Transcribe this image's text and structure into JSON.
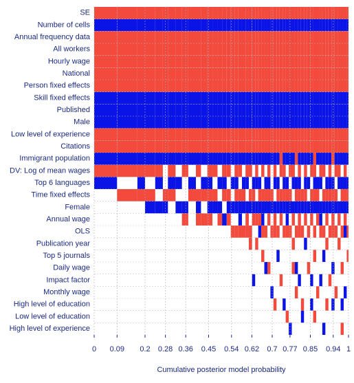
{
  "chart_data": {
    "type": "inclusion",
    "xlabel": "Cumulative posterior model probability",
    "xlim": [
      0,
      1
    ],
    "xticks": [
      0,
      0.09,
      0.2,
      0.28,
      0.36,
      0.45,
      0.54,
      0.62,
      0.7,
      0.77,
      0.85,
      0.94,
      1
    ],
    "grid": true,
    "colors": {
      "+": "#f24a3c",
      "-": "#0a14e6"
    },
    "variables": [
      "SE",
      "Number of cells",
      "Annual frequency data",
      "All workers",
      "Hourly wage",
      "National",
      "Person fixed effects",
      "Skill fixed effects",
      "Published",
      "Male",
      "Low level of experience",
      "Citations",
      "Immigrant population",
      "DV: Log of mean wages",
      "Top 6 languages",
      "Time fixed effects",
      "Female",
      "Annual wage",
      "OLS",
      "Publication year",
      "Top 5 journals",
      "Daily wage",
      "Impact factor",
      "Monthly wage",
      "High level of education",
      "Low level of education",
      "High level of experience"
    ],
    "models": [
      {
        "prob": 0.09,
        "signs": "+-+++++---++-+-000000000000"
      },
      {
        "prob": 0.08,
        "signs": "+-+++++---++-+0+00000000000"
      },
      {
        "prob": 0.03,
        "signs": "+-+++++---++-+-+00000000000"
      },
      {
        "prob": 0.04,
        "signs": "+-+++++---++-+0+-0000000000"
      },
      {
        "prob": 0.03,
        "signs": "+-+++++---++-+-0-0000000000"
      },
      {
        "prob": 0.02,
        "signs": "+-+++++---++-00+-0000000000"
      },
      {
        "prob": 0.03,
        "signs": "+-+++++---++-+-+00000000000"
      },
      {
        "prob": 0.025,
        "signs": "+-+++++---++-0-0-0000000000"
      },
      {
        "prob": 0.025,
        "signs": "+-+++++---++-+00-+000000000"
      },
      {
        "prob": 0.03,
        "signs": "+-+++++---++-0-+00000000000"
      },
      {
        "prob": 0.02,
        "signs": "+-+++++---++-+0+-+000000000"
      },
      {
        "prob": 0.025,
        "signs": "+-+++++---++-0-+0+000000000"
      },
      {
        "prob": 0.02,
        "signs": "+-+++++---++-+-+-+000000000"
      },
      {
        "prob": 0.02,
        "signs": "+-+++++---++-+0+-0000000000"
      },
      {
        "prob": 0.018,
        "signs": "+-+++++---++-0-0-+000000000"
      },
      {
        "prob": 0.018,
        "signs": "+-+++++---++-+-+0-000000000"
      },
      {
        "prob": 0.016,
        "signs": "+-+++++---++-+0+-+000000000"
      },
      {
        "prob": 0.015,
        "signs": "+-+++++---++-0-0-0+00000000"
      },
      {
        "prob": 0.015,
        "signs": "+-+++++---++-+-+-0+00000000"
      },
      {
        "prob": 0.014,
        "signs": "+-+++++---++-+0+--+00000000"
      },
      {
        "prob": 0.014,
        "signs": "+-+++++---++-0-+-0+00000000"
      },
      {
        "prob": 0.013,
        "signs": "+-+++++---++-+-0-++00000000"
      },
      {
        "prob": 0.013,
        "signs": "+-+++++---++-+0+-0++0000000"
      },
      {
        "prob": 0.012,
        "signs": "+-+++++---++-0-+-+0000-0000"
      },
      {
        "prob": 0.012,
        "signs": "+-+++++---++-+-0-+0+0000000"
      },
      {
        "prob": 0.012,
        "signs": "+-+++++---++-0-+-+-00000000"
      },
      {
        "prob": 0.012,
        "signs": "+-+++++---++-+0+--+0+000000"
      },
      {
        "prob": 0.012,
        "signs": "+-+++++---++-0-+-0+00-00000"
      },
      {
        "prob": 0.012,
        "signs": "+-+++++---++-+-+-+000+00000"
      },
      {
        "prob": 0.012,
        "signs": "+-+++++---++-00+-0+0000-000"
      },
      {
        "prob": 0.012,
        "signs": "+-+++++---++-+-0-++00000+00"
      },
      {
        "prob": 0.012,
        "signs": "+-+++++---++-0-+-0+0-000000"
      },
      {
        "prob": 0.012,
        "signs": "+-+++++---++++0+-+0000+0000"
      },
      {
        "prob": 0.012,
        "signs": "+-+++++---++-+-+-0+00000-00"
      },
      {
        "prob": 0.012,
        "signs": "+-+++++---++-0-+--+000000+0"
      },
      {
        "prob": 0.012,
        "signs": "+-+++++---++-+0+-0+0000000-"
      },
      {
        "prob": 0.012,
        "signs": "+-+++++---++-+-0-+0+0+00000"
      },
      {
        "prob": 0.012,
        "signs": "+-+++++---+++0-+-0+00-0+000"
      },
      {
        "prob": 0.012,
        "signs": "+-+++++---++-+-+-++000-0000"
      },
      {
        "prob": 0.012,
        "signs": "+-+++++---++-00+-0+00000+-0"
      },
      {
        "prob": 0.012,
        "signs": "+-+++++---++-+-+-+0-0000000"
      },
      {
        "prob": 0.012,
        "signs": "+-+++++---++-0-0-0+00+00000"
      },
      {
        "prob": 0.012,
        "signs": "+-+++++---++-+0+-+0000-0-00"
      },
      {
        "prob": 0.012,
        "signs": "+-+++++---++++-+-0+0+0000+0"
      },
      {
        "prob": 0.012,
        "signs": "+-+++++---++-0-+-+00000+000"
      },
      {
        "prob": 0.012,
        "signs": "+-+++++---++-+-0--+000-0000"
      },
      {
        "prob": 0.012,
        "signs": "+-+++++---++-+0+-0+0-00000-"
      },
      {
        "prob": 0.012,
        "signs": "+-+++++---++-0-+-+0+0000+00"
      },
      {
        "prob": 0.012,
        "signs": "+-+++++---++-+-+-0+000+0000"
      },
      {
        "prob": 0.012,
        "signs": "+-+++++---+++0-+-++00-00-00"
      },
      {
        "prob": 0.012,
        "signs": "+-+++++---++-+0+-0+0000+000"
      },
      {
        "prob": 0.012,
        "signs": "+-+++++---++-+-0-+0+0000000"
      },
      {
        "prob": 0.012,
        "signs": "+-+++++---++-0-+-0+00+00-0+"
      },
      {
        "prob": 0.012,
        "signs": "+-+++++---++-+-+-+-0000-000"
      },
      {
        "prob": 0.007,
        "signs": "+-+++++---++-0-+-0+0+000000"
      }
    ]
  }
}
